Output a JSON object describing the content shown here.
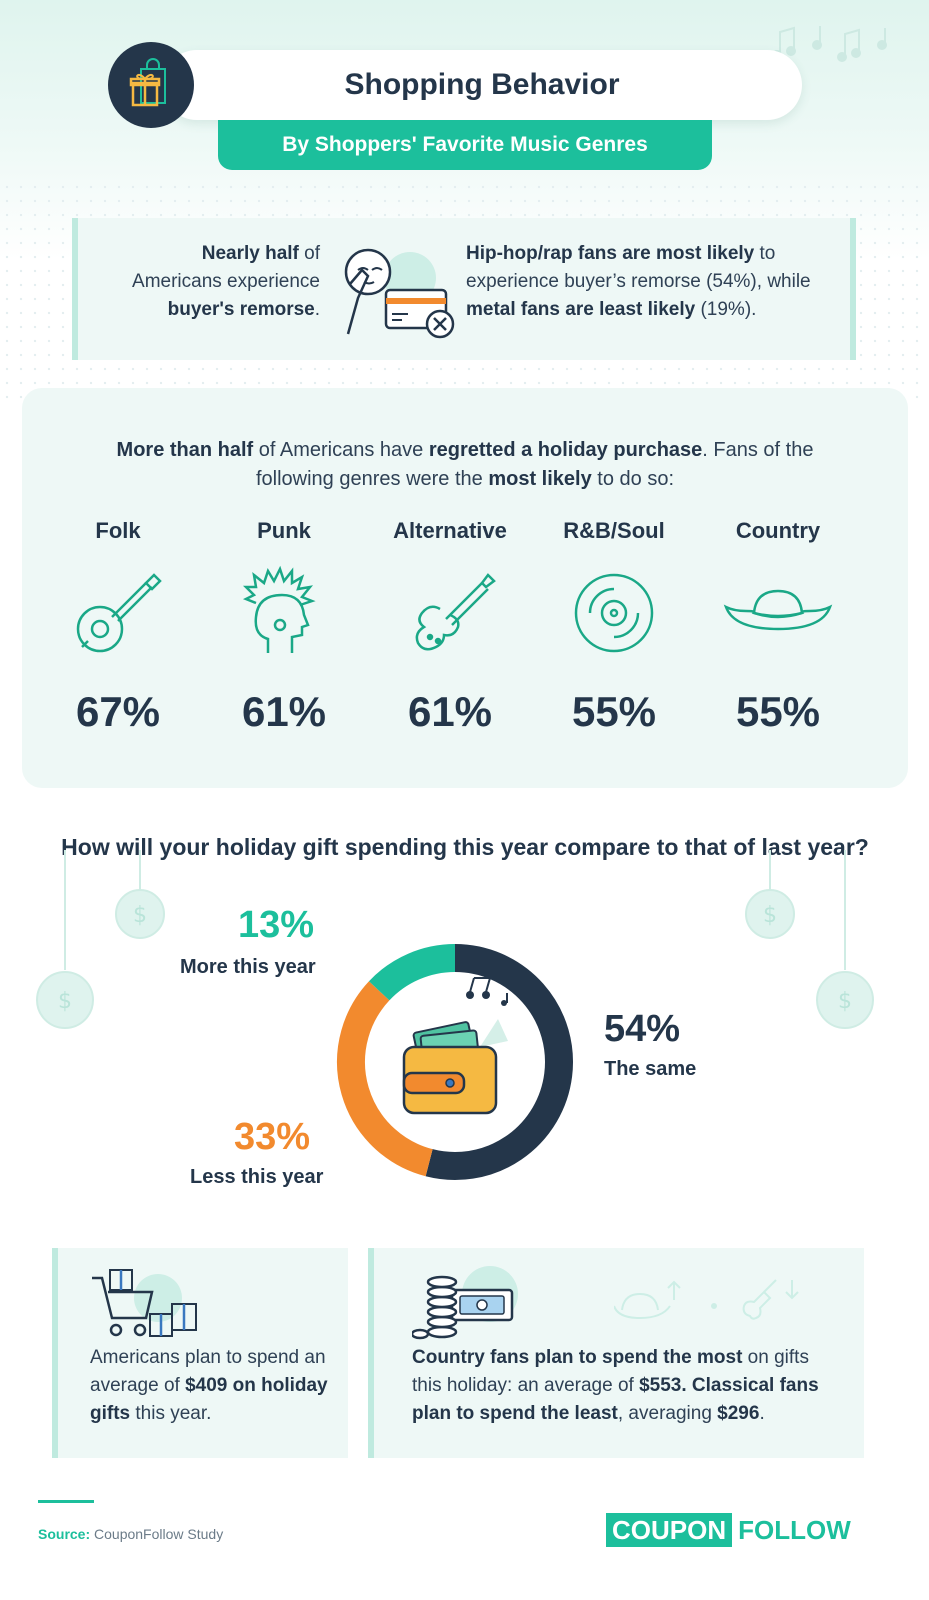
{
  "header": {
    "title": "Shopping Behavior",
    "subtitle": "By Shoppers' Favorite Music Genres"
  },
  "remorse": {
    "left_bold1": "Nearly half",
    "left_text1": " of",
    "left_text2": "Americans experience",
    "left_bold2": "buyer's remorse",
    "left_text3": ".",
    "right_bold1": "Hip-hop/rap fans are most likely",
    "right_text1": " to experience buyer’s remorse (54%), while ",
    "right_bold2": "metal fans are least likely",
    "right_text2": " (19%)."
  },
  "regret": {
    "bold1": "More than half",
    "text1": " of Americans have ",
    "bold2": "regretted a holiday purchase",
    "text2": ". Fans of the following genres were the ",
    "bold3": "most likely",
    "text3": " to do so:"
  },
  "chart_data": [
    {
      "type": "table",
      "categories": [
        "Folk",
        "Punk",
        "Alternative",
        "R&B/Soul",
        "Country"
      ],
      "values": [
        67,
        61,
        61,
        55,
        55
      ],
      "value_labels": [
        "67%",
        "61%",
        "61%",
        "55%",
        "55%"
      ],
      "icons": [
        "banjo-icon",
        "punk-head-icon",
        "guitar-icon",
        "vinyl-record-icon",
        "cowboy-hat-icon"
      ]
    },
    {
      "type": "pie",
      "title": "How will your holiday gift spending this year compare to that of last year?",
      "categories": [
        "More this year",
        "The same",
        "Less this year"
      ],
      "values": [
        13,
        54,
        33
      ],
      "value_labels": [
        "13%",
        "54%",
        "33%"
      ],
      "colors": [
        "#1cbf9c",
        "#24364a",
        "#f28a2e"
      ]
    }
  ],
  "cards": {
    "avg_text1": "Americans plan to spend an average of ",
    "avg_bold1": "$409 on holiday gifts",
    "avg_text2": " this year.",
    "genre_bold1": "Country fans plan to spend the most",
    "genre_text1": " on gifts this holiday: an average of ",
    "genre_bold2": "$553. Classical fans plan to spend the least",
    "genre_text2": ", averaging ",
    "genre_bold3": "$296",
    "genre_text3": "."
  },
  "footer": {
    "source_label": "Source:",
    "source_value": "CouponFollow Study",
    "logo_part1": "COUPON",
    "logo_part2": "FOLLOW"
  },
  "colors": {
    "accent": "#1cbf9c",
    "navy": "#24364a",
    "orange": "#f28a2e",
    "card_bg": "#eef8f6"
  }
}
